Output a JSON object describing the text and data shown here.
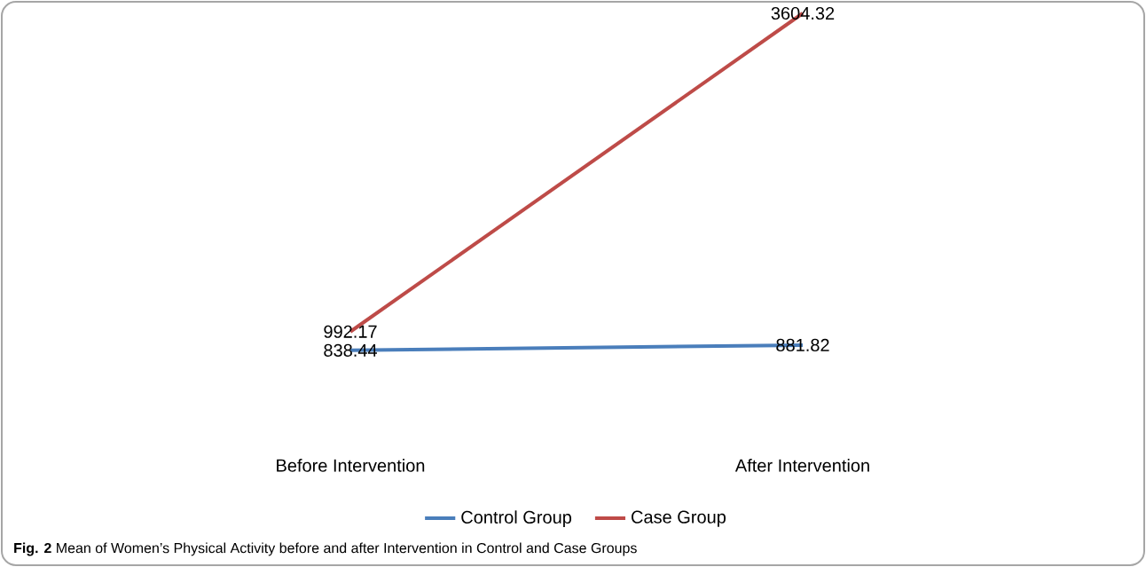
{
  "chart_data": {
    "type": "line",
    "categories": [
      "Before Intervention",
      "After Intervention"
    ],
    "series": [
      {
        "name": "Control Group",
        "color": "#4a7ebb",
        "values": [
          838.44,
          881.82
        ]
      },
      {
        "name": "Case Group",
        "color": "#be4b48",
        "values": [
          992.17,
          3604.32
        ]
      }
    ],
    "data_labels": true,
    "legend": "bottom",
    "marker": "none",
    "line_style": "solid",
    "annotations": [
      "**Fig. 2** Mean of Women’s Physical Activity before and after Intervention in Control and Case Groups"
    ]
  }
}
